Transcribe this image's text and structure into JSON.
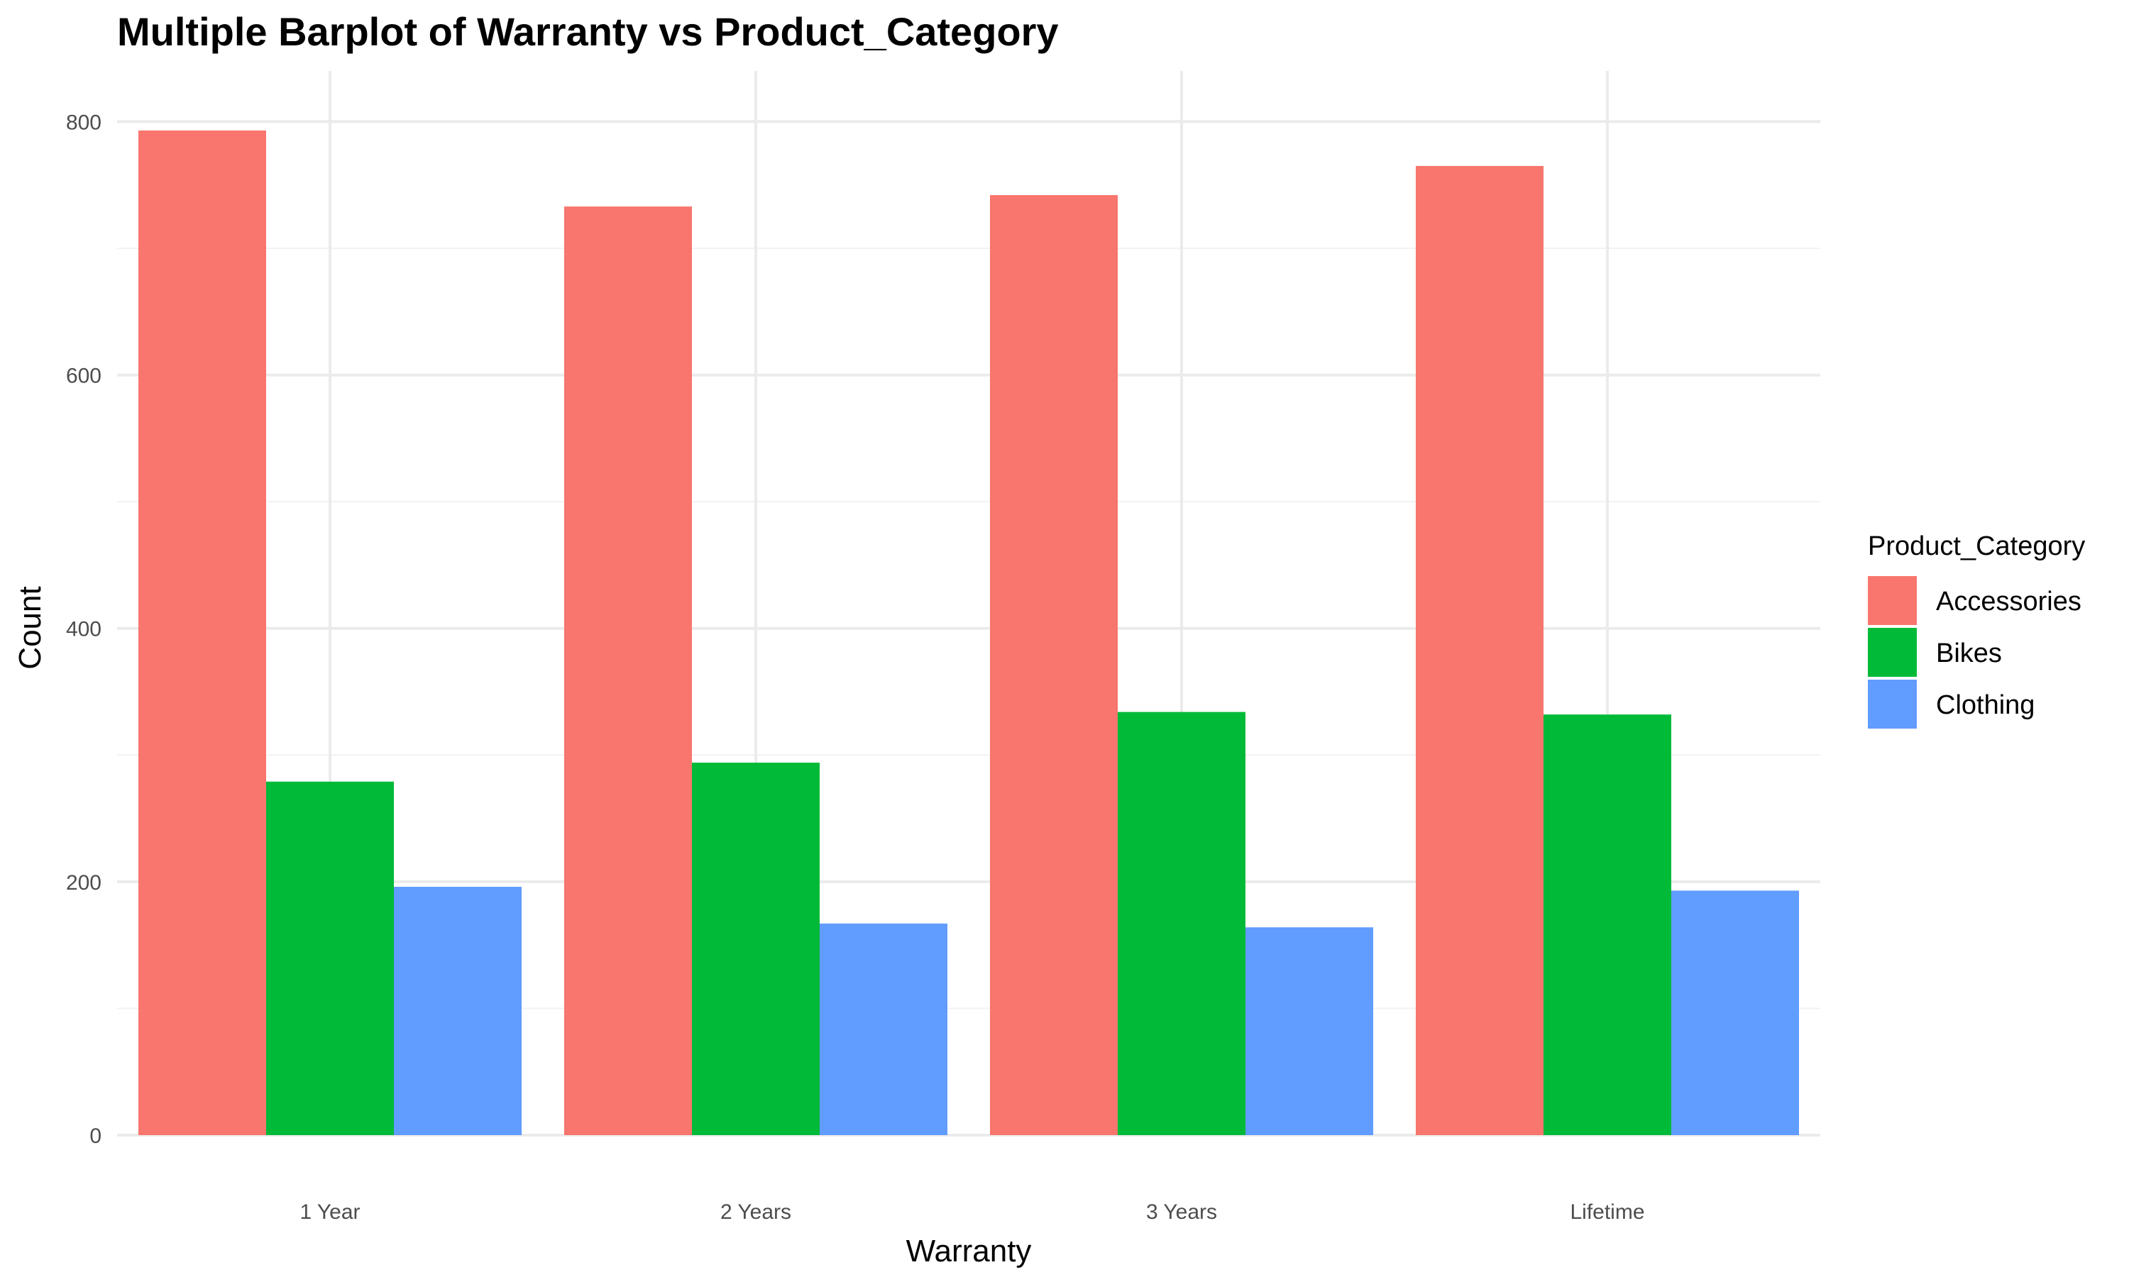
{
  "chart_data": {
    "type": "bar",
    "title": "Multiple Barplot of Warranty vs Product_Category",
    "xlabel": "Warranty",
    "ylabel": "Count",
    "categories": [
      "1 Year",
      "2 Years",
      "3 Years",
      "Lifetime"
    ],
    "series": [
      {
        "name": "Accessories",
        "color": "#F8766D",
        "values": [
          793,
          733,
          742,
          765
        ]
      },
      {
        "name": "Bikes",
        "color": "#00BA38",
        "values": [
          279,
          294,
          334,
          332
        ]
      },
      {
        "name": "Clothing",
        "color": "#619CFF",
        "values": [
          196,
          167,
          164,
          193
        ]
      }
    ],
    "ylim": [
      0,
      840
    ],
    "yticks": [
      0,
      200,
      400,
      600,
      800
    ],
    "ytick_labels": [
      "0",
      "200",
      "400",
      "600",
      "800"
    ],
    "grid": true,
    "bar_layout": "grouped",
    "legend": {
      "title": "Product_Category",
      "placement": "right"
    }
  }
}
